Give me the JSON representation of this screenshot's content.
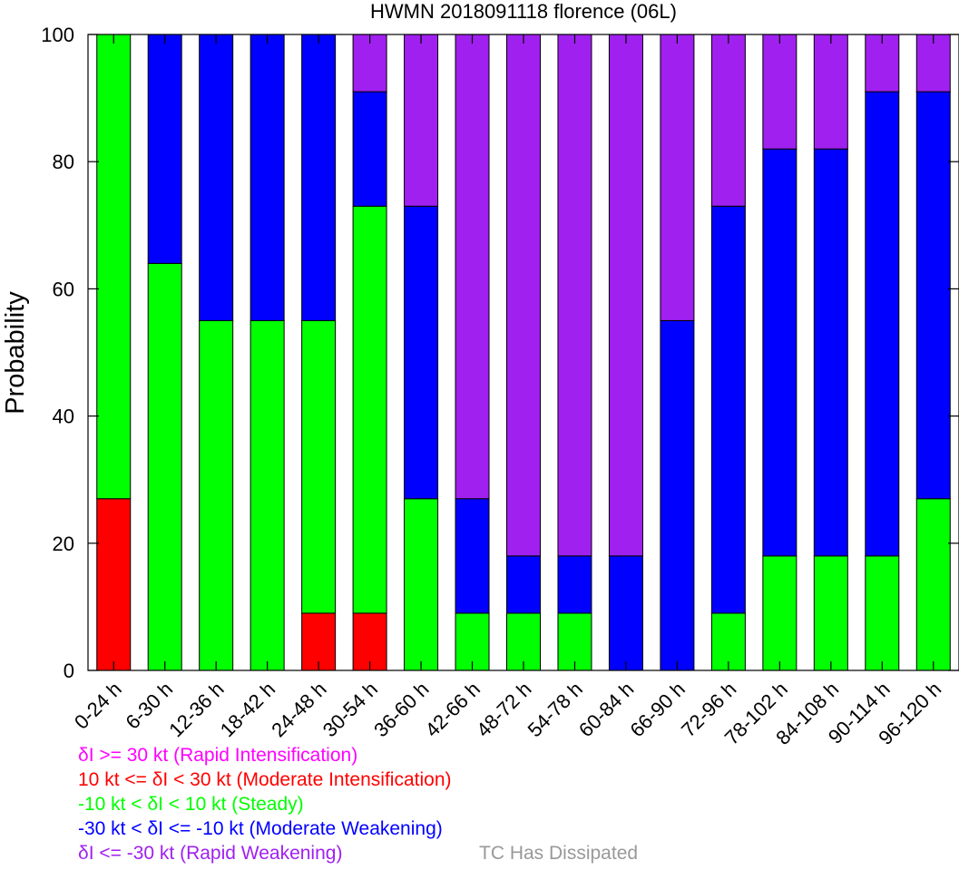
{
  "chart_data": {
    "type": "bar",
    "stacked": true,
    "title": "HWMN 2018091118 florence (06L)",
    "xlabel": "",
    "ylabel": "Probability",
    "ylim": [
      0,
      100
    ],
    "yticks": [
      0,
      20,
      40,
      60,
      80,
      100
    ],
    "grid": false,
    "legend_position": "bottom",
    "categories": [
      "0-24 h",
      "6-30 h",
      "12-36 h",
      "18-42 h",
      "24-48 h",
      "30-54 h",
      "36-60 h",
      "42-66 h",
      "48-72 h",
      "54-78 h",
      "60-84 h",
      "66-90 h",
      "72-96 h",
      "78-102 h",
      "84-108 h",
      "90-114 h",
      "96-120 h"
    ],
    "series": [
      {
        "key": "ri",
        "color": "#ff00ff",
        "values": [
          0,
          0,
          0,
          0,
          0,
          0,
          0,
          0,
          0,
          0,
          0,
          0,
          0,
          0,
          0,
          0,
          0
        ]
      },
      {
        "key": "mi",
        "color": "#ff0000",
        "values": [
          27,
          0,
          0,
          0,
          9,
          9,
          0,
          0,
          0,
          0,
          0,
          0,
          0,
          0,
          0,
          0,
          0
        ]
      },
      {
        "key": "st",
        "color": "#00ff00",
        "values": [
          73,
          64,
          55,
          55,
          46,
          64,
          27,
          9,
          9,
          9,
          0,
          0,
          9,
          18,
          18,
          18,
          27
        ]
      },
      {
        "key": "mw",
        "color": "#0000ff",
        "values": [
          0,
          36,
          45,
          45,
          45,
          18,
          46,
          18,
          9,
          9,
          18,
          55,
          64,
          64,
          64,
          73,
          64
        ]
      },
      {
        "key": "rw",
        "color": "#a020f0",
        "values": [
          0,
          0,
          0,
          0,
          0,
          9,
          27,
          73,
          82,
          82,
          82,
          45,
          27,
          18,
          18,
          9,
          9
        ]
      }
    ],
    "legend": {
      "ri": "δI >= 30 kt (Rapid Intensification)",
      "mi": "10 kt <= δI < 30 kt (Moderate Intensification)",
      "st": "-10 kt < δI < 10 kt (Steady)",
      "mw": "-30 kt < δI <= -10 kt (Moderate Weakening)",
      "rw": "δI <= -30 kt (Rapid Weakening)",
      "dissipated": "TC Has Dissipated",
      "dissipated_color": "#999999"
    }
  }
}
